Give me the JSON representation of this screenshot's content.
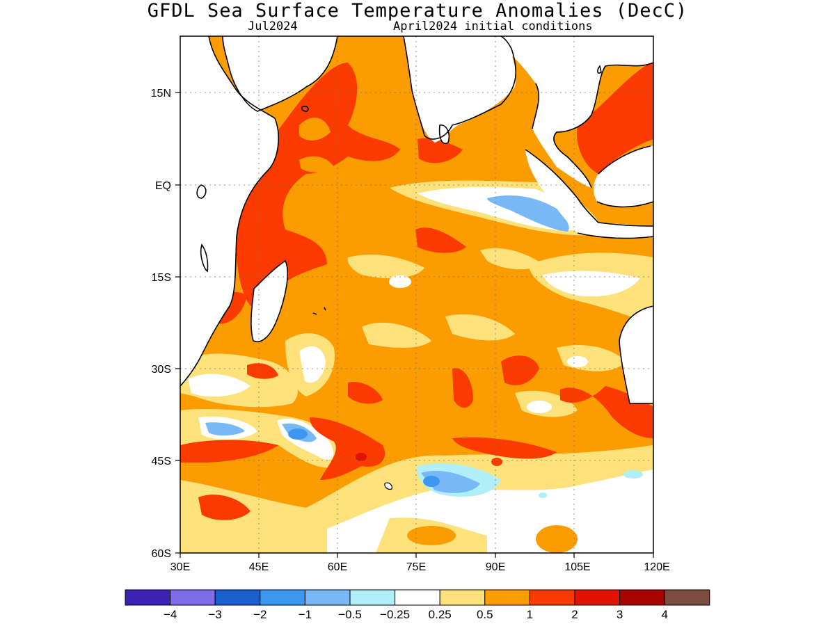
{
  "title": "GFDL Sea Surface Temperature Anomalies (DecC)",
  "subtitle_left": "Jul2024",
  "subtitle_right": "April2024 initial conditions",
  "lat_labels": [
    "15N",
    "EQ",
    "15S",
    "30S",
    "45S",
    "60S"
  ],
  "lon_labels": [
    "30E",
    "45E",
    "60E",
    "75E",
    "90E",
    "105E",
    "120E"
  ],
  "colorbar": {
    "colors": [
      "#3b22b5",
      "#7f6ce8",
      "#1a5fd0",
      "#3d97f0",
      "#78b8f6",
      "#b0eef8",
      "#ffffff",
      "#fde27c",
      "#fb9d00",
      "#fb3a00",
      "#df1300",
      "#a70400",
      "#7b4c40"
    ],
    "labels": [
      "−4",
      "−3",
      "−2",
      "−1",
      "−0.5",
      "−0.25",
      "0.25",
      "0.5",
      "1",
      "2",
      "3",
      "4"
    ]
  },
  "map": {
    "region": "Indian Ocean",
    "lon_range": [
      30,
      120
    ],
    "lat_range": [
      -60,
      24
    ],
    "dominant_anomaly_color": "#fb9d00"
  }
}
